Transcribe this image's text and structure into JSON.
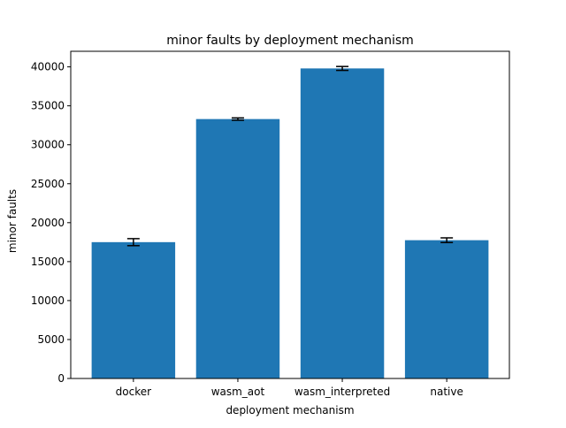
{
  "chart_data": {
    "type": "bar",
    "title": "minor faults by deployment mechanism",
    "xlabel": "deployment mechanism",
    "ylabel": "minor faults",
    "categories": [
      "docker",
      "wasm_aot",
      "wasm_interpreted",
      "native"
    ],
    "values": [
      17500,
      33300,
      39800,
      17750
    ],
    "errors": [
      450,
      150,
      250,
      300
    ],
    "ylim": [
      0,
      42000
    ],
    "yticks": [
      0,
      5000,
      10000,
      15000,
      20000,
      25000,
      30000,
      35000,
      40000
    ],
    "bar_color": "#1f77b4",
    "error_color": "#000000",
    "grid": false,
    "legend": false
  }
}
